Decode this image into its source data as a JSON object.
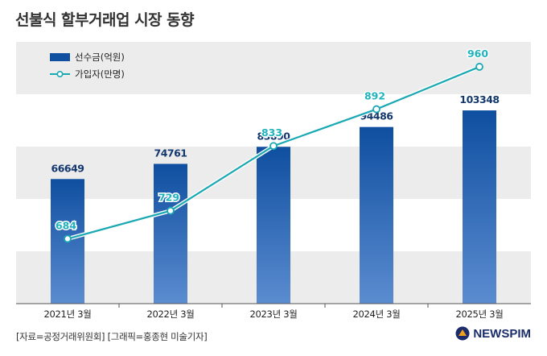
{
  "title": "선불식 할부거래업 시장 동향",
  "source": "[자료=공정거래위원회] [그래픽=홍종현 미술기자]",
  "logo": "NEWSPIM",
  "colors": {
    "bar_top": "#0f4fa0",
    "bar_bottom": "#5b8cd0",
    "line": "#1aa8b3",
    "label_bar": "#13386e",
    "label_line": "#1fb3bd",
    "band": "#ececec"
  },
  "chart_data": {
    "type": "bar+line",
    "categories": [
      "2021년 3월",
      "2022년 3월",
      "2023년 3월",
      "2024년 3월",
      "2025년 3월"
    ],
    "series": [
      {
        "name": "선수금(억원)",
        "type": "bar",
        "values": [
          66649,
          74761,
          83890,
          94486,
          103348
        ]
      },
      {
        "name": "가입자(만명)",
        "type": "line",
        "values": [
          684,
          729,
          833,
          892,
          960
        ]
      }
    ],
    "bar_ylim": [
      0,
      140000
    ],
    "line_ylim": [
      580,
      1000
    ],
    "legend_position": "top-left"
  }
}
